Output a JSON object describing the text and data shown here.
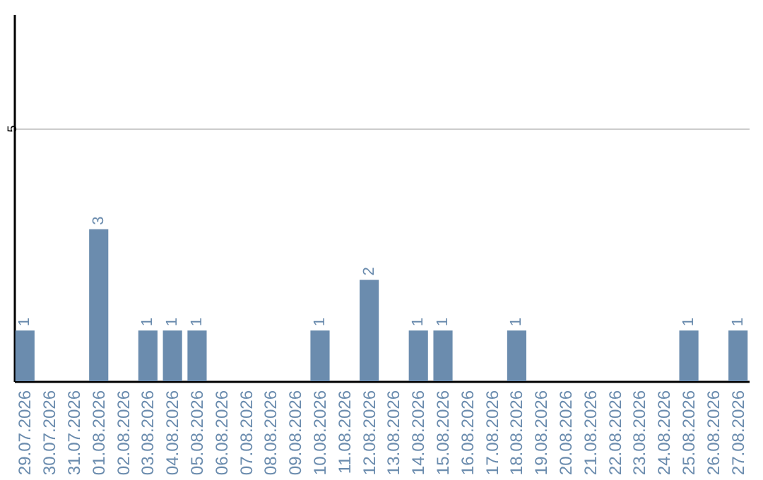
{
  "chart_data": {
    "type": "bar",
    "categories": [
      "29.07.2026",
      "30.07.2026",
      "31.07.2026",
      "01.08.2026",
      "02.08.2026",
      "03.08.2026",
      "04.08.2026",
      "05.08.2026",
      "06.08.2026",
      "07.08.2026",
      "08.08.2026",
      "09.08.2026",
      "10.08.2026",
      "11.08.2026",
      "12.08.2026",
      "13.08.2026",
      "14.08.2026",
      "15.08.2026",
      "16.08.2026",
      "17.08.2026",
      "18.08.2026",
      "19.08.2026",
      "20.08.2026",
      "21.08.2026",
      "22.08.2026",
      "23.08.2026",
      "24.08.2026",
      "25.08.2026",
      "26.08.2026",
      "27.08.2026"
    ],
    "values": [
      1,
      0,
      0,
      3,
      0,
      1,
      1,
      1,
      0,
      0,
      0,
      0,
      1,
      0,
      2,
      0,
      1,
      1,
      0,
      0,
      1,
      0,
      0,
      0,
      0,
      0,
      0,
      1,
      0,
      1
    ],
    "value_labels": [
      "1",
      null,
      null,
      "3",
      null,
      "1",
      "1",
      "1",
      null,
      null,
      null,
      null,
      "1",
      null,
      "2",
      null,
      "1",
      "1",
      null,
      null,
      "1",
      null,
      null,
      null,
      null,
      null,
      null,
      "1",
      null,
      "1"
    ],
    "color": "#6b8cae",
    "ylim": [
      0,
      7.25
    ],
    "yticks": [
      5
    ],
    "grid": "y"
  }
}
